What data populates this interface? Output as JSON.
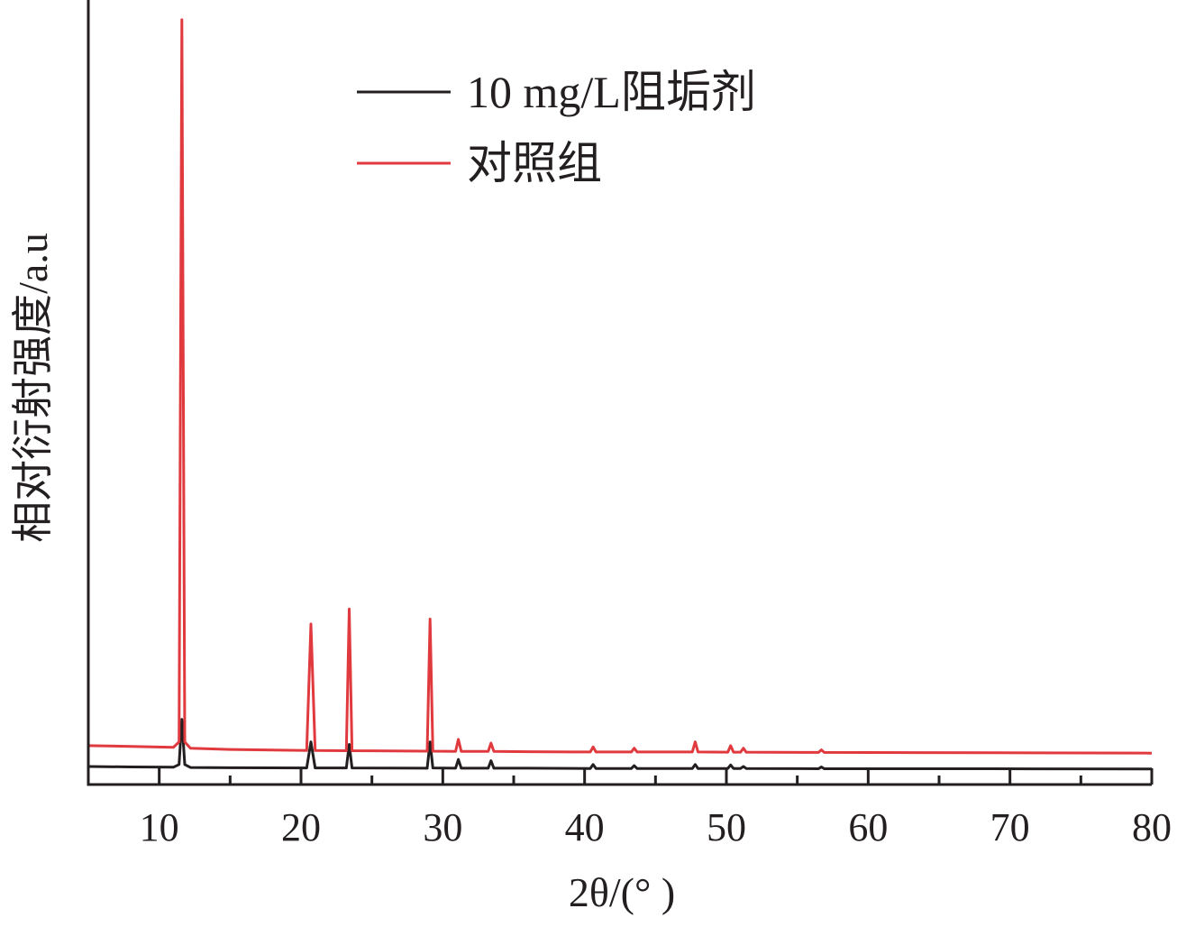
{
  "chart_data": {
    "type": "line",
    "title": "",
    "xlabel": "2θ/(° )",
    "ylabel": "相对衍射强度/a.u",
    "xlim": [
      5,
      80
    ],
    "xticks": [
      "10",
      "20",
      "30",
      "40",
      "50",
      "60",
      "70",
      "80"
    ],
    "y_ticks_shown": false,
    "grid": false,
    "legend_position": "top-center",
    "peaks_2theta": [
      11.6,
      20.7,
      23.4,
      29.1,
      31.1,
      33.4,
      40.6,
      43.5,
      47.8,
      50.3,
      51.2,
      56.7
    ],
    "series": [
      {
        "name": "10 mg/L阻垢剂",
        "color": "#231f20",
        "baseline": 0.65,
        "points": [
          [
            5,
            0.72
          ],
          [
            8,
            0.7
          ],
          [
            11,
            0.69
          ],
          [
            11.4,
            0.8
          ],
          [
            11.6,
            2.6
          ],
          [
            11.8,
            0.8
          ],
          [
            12.2,
            0.68
          ],
          [
            15,
            0.67
          ],
          [
            20.4,
            0.66
          ],
          [
            20.7,
            1.7
          ],
          [
            21.0,
            0.66
          ],
          [
            23.2,
            0.66
          ],
          [
            23.4,
            1.6
          ],
          [
            23.6,
            0.66
          ],
          [
            28.9,
            0.65
          ],
          [
            29.1,
            1.7
          ],
          [
            29.3,
            0.66
          ],
          [
            30.9,
            0.65
          ],
          [
            31.1,
            1.0
          ],
          [
            31.3,
            0.65
          ],
          [
            33.2,
            0.65
          ],
          [
            33.4,
            0.95
          ],
          [
            33.6,
            0.65
          ],
          [
            36,
            0.65
          ],
          [
            40.4,
            0.64
          ],
          [
            40.6,
            0.8
          ],
          [
            40.8,
            0.64
          ],
          [
            43.3,
            0.64
          ],
          [
            43.5,
            0.75
          ],
          [
            43.7,
            0.64
          ],
          [
            47.6,
            0.64
          ],
          [
            47.8,
            0.8
          ],
          [
            48.0,
            0.64
          ],
          [
            50.1,
            0.64
          ],
          [
            50.3,
            0.78
          ],
          [
            50.5,
            0.64
          ],
          [
            51.0,
            0.64
          ],
          [
            51.2,
            0.72
          ],
          [
            51.4,
            0.64
          ],
          [
            56.5,
            0.63
          ],
          [
            56.7,
            0.7
          ],
          [
            56.9,
            0.63
          ],
          [
            68.8,
            0.63
          ],
          [
            80,
            0.62
          ]
        ]
      },
      {
        "name": "对照组",
        "color": "#e03a3e",
        "baseline": 1.3,
        "points": [
          [
            5,
            1.55
          ],
          [
            8,
            1.52
          ],
          [
            11,
            1.48
          ],
          [
            11.4,
            1.7
          ],
          [
            11.6,
            30.5
          ],
          [
            11.8,
            1.7
          ],
          [
            12.2,
            1.45
          ],
          [
            15,
            1.4
          ],
          [
            20.4,
            1.36
          ],
          [
            20.7,
            6.4
          ],
          [
            21.0,
            1.36
          ],
          [
            23.2,
            1.35
          ],
          [
            23.4,
            7.0
          ],
          [
            23.6,
            1.35
          ],
          [
            28.9,
            1.33
          ],
          [
            29.1,
            6.6
          ],
          [
            29.3,
            1.33
          ],
          [
            30.9,
            1.32
          ],
          [
            31.1,
            1.8
          ],
          [
            31.3,
            1.32
          ],
          [
            33.2,
            1.32
          ],
          [
            33.4,
            1.65
          ],
          [
            33.6,
            1.32
          ],
          [
            36,
            1.31
          ],
          [
            40.4,
            1.3
          ],
          [
            40.6,
            1.5
          ],
          [
            40.8,
            1.3
          ],
          [
            43.3,
            1.3
          ],
          [
            43.5,
            1.45
          ],
          [
            43.7,
            1.3
          ],
          [
            47.6,
            1.3
          ],
          [
            47.8,
            1.7
          ],
          [
            48.0,
            1.3
          ],
          [
            50.1,
            1.29
          ],
          [
            50.3,
            1.55
          ],
          [
            50.5,
            1.29
          ],
          [
            51.0,
            1.29
          ],
          [
            51.2,
            1.45
          ],
          [
            51.4,
            1.29
          ],
          [
            56.5,
            1.28
          ],
          [
            56.7,
            1.38
          ],
          [
            56.9,
            1.28
          ],
          [
            68.8,
            1.27
          ],
          [
            80,
            1.25
          ]
        ]
      }
    ]
  }
}
